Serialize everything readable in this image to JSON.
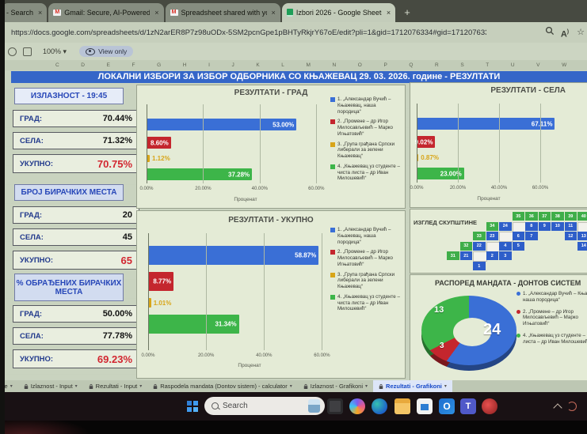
{
  "browser": {
    "tabs": [
      {
        "label": "- Search",
        "icon": "none",
        "active": false
      },
      {
        "label": "Gmail: Secure, AI-Powered Email |",
        "icon": "gmail",
        "active": false
      },
      {
        "label": "Spreadsheet shared with you: \"Izl",
        "icon": "gmail",
        "active": false
      },
      {
        "label": "Izbori 2026 - Google Sheets",
        "icon": "sheets",
        "active": true
      }
    ],
    "url": "https://docs.google.com/spreadsheets/d/1zN2arER8P7z98uODx-5SM2pcnGpe1pBHTyRkjrY67oE/edit?pli=1&gid=1712076334#gid=1712076334",
    "new_tab": "+"
  },
  "toolbar": {
    "zoom": "100%",
    "view_only": "View only"
  },
  "columns": [
    "C",
    "D",
    "E",
    "F",
    "G",
    "H",
    "I",
    "J",
    "K",
    "L",
    "M",
    "N",
    "O",
    "P",
    "Q",
    "R",
    "S",
    "T",
    "U",
    "V",
    "W",
    "X",
    "Y",
    "Z"
  ],
  "title": "ЛОКАЛНИ ИЗБОРИ ЗА ИЗБОР ОДБОРНИКА СО КЊАЖЕВАЦ  29. 03. 2026. године - РЕЗУЛТАТИ",
  "stats": {
    "turnout": {
      "header": "ИЗЛАЗНОСТ - 19:45",
      "rows": [
        {
          "label": "ГРАД:",
          "value": "70.44%"
        },
        {
          "label": "СЕЛА:",
          "value": "71.32%"
        },
        {
          "label": "УКУПНО:",
          "value": "70.75%"
        }
      ]
    },
    "polling_stations": {
      "header": "БРОЈ БИРАЧКИХ МЕСТА",
      "rows": [
        {
          "label": "ГРАД:",
          "value": "20"
        },
        {
          "label": "СЕЛА:",
          "value": "45"
        },
        {
          "label": "УКУПНО:",
          "value": "65"
        }
      ]
    },
    "processed": {
      "header": "% ОБРАЂЕНИХ БИРАЧКИХ МЕСТА",
      "rows": [
        {
          "label": "ГРАД:",
          "value": "50.00%"
        },
        {
          "label": "СЕЛА:",
          "value": "77.78%"
        },
        {
          "label": "УКУПНО:",
          "value": "69.23%"
        }
      ]
    }
  },
  "chart_data": [
    {
      "type": "bar",
      "title": "РЕЗУЛТАТИ - ГРАД",
      "xlabel": "Проценат",
      "xlim": [
        0,
        70
      ],
      "ticks": [
        {
          "v": 0,
          "label": "0.00%"
        },
        {
          "v": 20,
          "label": "20.00%"
        },
        {
          "v": 40,
          "label": "40.00%"
        },
        {
          "v": 60,
          "label": "60.00%"
        }
      ],
      "legend_position": "right",
      "series": [
        {
          "name": "1. „Александар Вучић – Књажевац, наша породица“",
          "value": 53.0,
          "display": "53.00%",
          "color": "#3a6fd6"
        },
        {
          "name": "2. „Промене – др Игор Милосављевић – Марко Игњатовић“",
          "value": 8.6,
          "display": "8.60%",
          "color": "#c4262e"
        },
        {
          "name": "3. „Група грађана Српски либерали за зелени Књажевац“",
          "value": 1.12,
          "display": "1.12%",
          "color": "#d8a519"
        },
        {
          "name": "4. „Књажевац уз студенте – чиста листа – др Иван Милошевић“",
          "value": 37.28,
          "display": "37.28%",
          "color": "#3db549"
        }
      ]
    },
    {
      "type": "bar",
      "title": "РЕЗУЛТАТИ - СЕЛА",
      "xlabel": "Проценат",
      "xlim": [
        0,
        70
      ],
      "ticks": [
        {
          "v": 0,
          "label": "0.00%"
        },
        {
          "v": 20,
          "label": "20.00%"
        },
        {
          "v": 40,
          "label": "40.00%"
        },
        {
          "v": 60,
          "label": "60.00%"
        }
      ],
      "legend_position": "none",
      "series": [
        {
          "name": "1. „Александар Вучић – Књажевац, наша породица“",
          "value": 67.11,
          "display": "67.11%",
          "color": "#3a6fd6"
        },
        {
          "name": "2. „Промене – др Игор Милосављевић – Марко Игњатовић“",
          "value": 9.02,
          "display": "9.02%",
          "color": "#c4262e"
        },
        {
          "name": "3. „Група грађана Српски либерали за зелени Књажевац“",
          "value": 0.87,
          "display": "0.87%",
          "color": "#d8a519"
        },
        {
          "name": "4. „Књажевац уз студенте – чиста листа – др Иван Милошевић“",
          "value": 23.0,
          "display": "23.00%",
          "color": "#3db549"
        }
      ]
    },
    {
      "type": "bar",
      "title": "РЕЗУЛТАТИ - УКУПНО",
      "xlabel": "Проценат",
      "xlim": [
        0,
        70
      ],
      "ticks": [
        {
          "v": 0,
          "label": "0.00%"
        },
        {
          "v": 20,
          "label": "20.00%"
        },
        {
          "v": 40,
          "label": "40.00%"
        },
        {
          "v": 60,
          "label": "60.00%"
        }
      ],
      "legend_position": "right",
      "series": [
        {
          "name": "1. „Александар Вучић – Књажевац, наша породица“",
          "value": 58.87,
          "display": "58.87%",
          "color": "#3a6fd6"
        },
        {
          "name": "2. „Промене – др Игор Милосављевић – Марко Игњатовић“",
          "value": 8.77,
          "display": "8.77%",
          "color": "#c4262e"
        },
        {
          "name": "3. „Група грађана Српски либерали за зелени Књажевац“",
          "value": 1.01,
          "display": "1.01%",
          "color": "#d8a519"
        },
        {
          "name": "4. „Књажевац уз студенте – чиста листа – др Иван Милошевић“",
          "value": 31.34,
          "display": "31.34%",
          "color": "#3db549"
        }
      ]
    },
    {
      "type": "pie",
      "donut": true,
      "title": "РАСПОРЕД МАНДАТА - ДОНТОВ СИСТЕМ",
      "total": 40,
      "slices": [
        {
          "label": "1. „Александар Вучић – Књажевац, наша породица“",
          "value": 24,
          "color": "#3a6fd6"
        },
        {
          "label": "2. „Промене – др Игор Милосављевић – Марко Игњатовић“",
          "value": 3,
          "color": "#c4262e"
        },
        {
          "label": "4. „Књажевац уз студенте – чиста листа – др Иван Милошевић“",
          "value": 13,
          "color": "#3db549"
        }
      ]
    }
  ],
  "assembly": {
    "title": "ИЗГЛЕД СКУПШТИНЕ",
    "seat_colors": {
      "b": "#2e5ec9",
      "g": "#3fae49",
      "e": "#f2f2ec"
    },
    "cells": [
      [
        0,
        5,
        "35",
        "g"
      ],
      [
        0,
        6,
        "36",
        "g"
      ],
      [
        0,
        7,
        "37",
        "g"
      ],
      [
        0,
        8,
        "38",
        "g"
      ],
      [
        0,
        9,
        "39",
        "g"
      ],
      [
        0,
        10,
        "40",
        "g"
      ],
      [
        1,
        3,
        "34",
        "g"
      ],
      [
        1,
        4,
        "24",
        "b"
      ],
      [
        1,
        5,
        "",
        "e"
      ],
      [
        1,
        6,
        "8",
        "b"
      ],
      [
        1,
        7,
        "9",
        "b"
      ],
      [
        1,
        8,
        "10",
        "b"
      ],
      [
        1,
        9,
        "11",
        "b"
      ],
      [
        1,
        10,
        "",
        "e"
      ],
      [
        2,
        2,
        "33",
        "g"
      ],
      [
        2,
        3,
        "23",
        "b"
      ],
      [
        2,
        4,
        "",
        "e"
      ],
      [
        2,
        5,
        "6",
        "b"
      ],
      [
        2,
        6,
        "7",
        "b"
      ],
      [
        2,
        9,
        "12",
        "b"
      ],
      [
        2,
        10,
        "13",
        "b"
      ],
      [
        3,
        1,
        "32",
        "g"
      ],
      [
        3,
        2,
        "22",
        "b"
      ],
      [
        3,
        3,
        "",
        "e"
      ],
      [
        3,
        4,
        "4",
        "b"
      ],
      [
        3,
        5,
        "5",
        "b"
      ],
      [
        3,
        10,
        "14",
        "b"
      ],
      [
        4,
        0,
        "31",
        "g"
      ],
      [
        4,
        1,
        "21",
        "b"
      ],
      [
        4,
        2,
        "",
        "e"
      ],
      [
        4,
        3,
        "2",
        "b"
      ],
      [
        4,
        4,
        "3",
        "b"
      ],
      [
        5,
        2,
        "1",
        "b"
      ]
    ]
  },
  "sheet_tabs": [
    {
      "label": "Informacije",
      "locked": false,
      "active": false
    },
    {
      "label": "Izlaznost - Input",
      "locked": true,
      "active": false
    },
    {
      "label": "Rezultati - Input",
      "locked": true,
      "active": false
    },
    {
      "label": "Raspodela mandata (Dontov sistem) - calculator",
      "locked": true,
      "active": false
    },
    {
      "label": "Izlaznost - Grafikoni",
      "locked": true,
      "active": false
    },
    {
      "label": "Rezultati - Grafikoni",
      "locked": true,
      "active": true
    }
  ],
  "taskbar": {
    "search_placeholder": "Search"
  }
}
